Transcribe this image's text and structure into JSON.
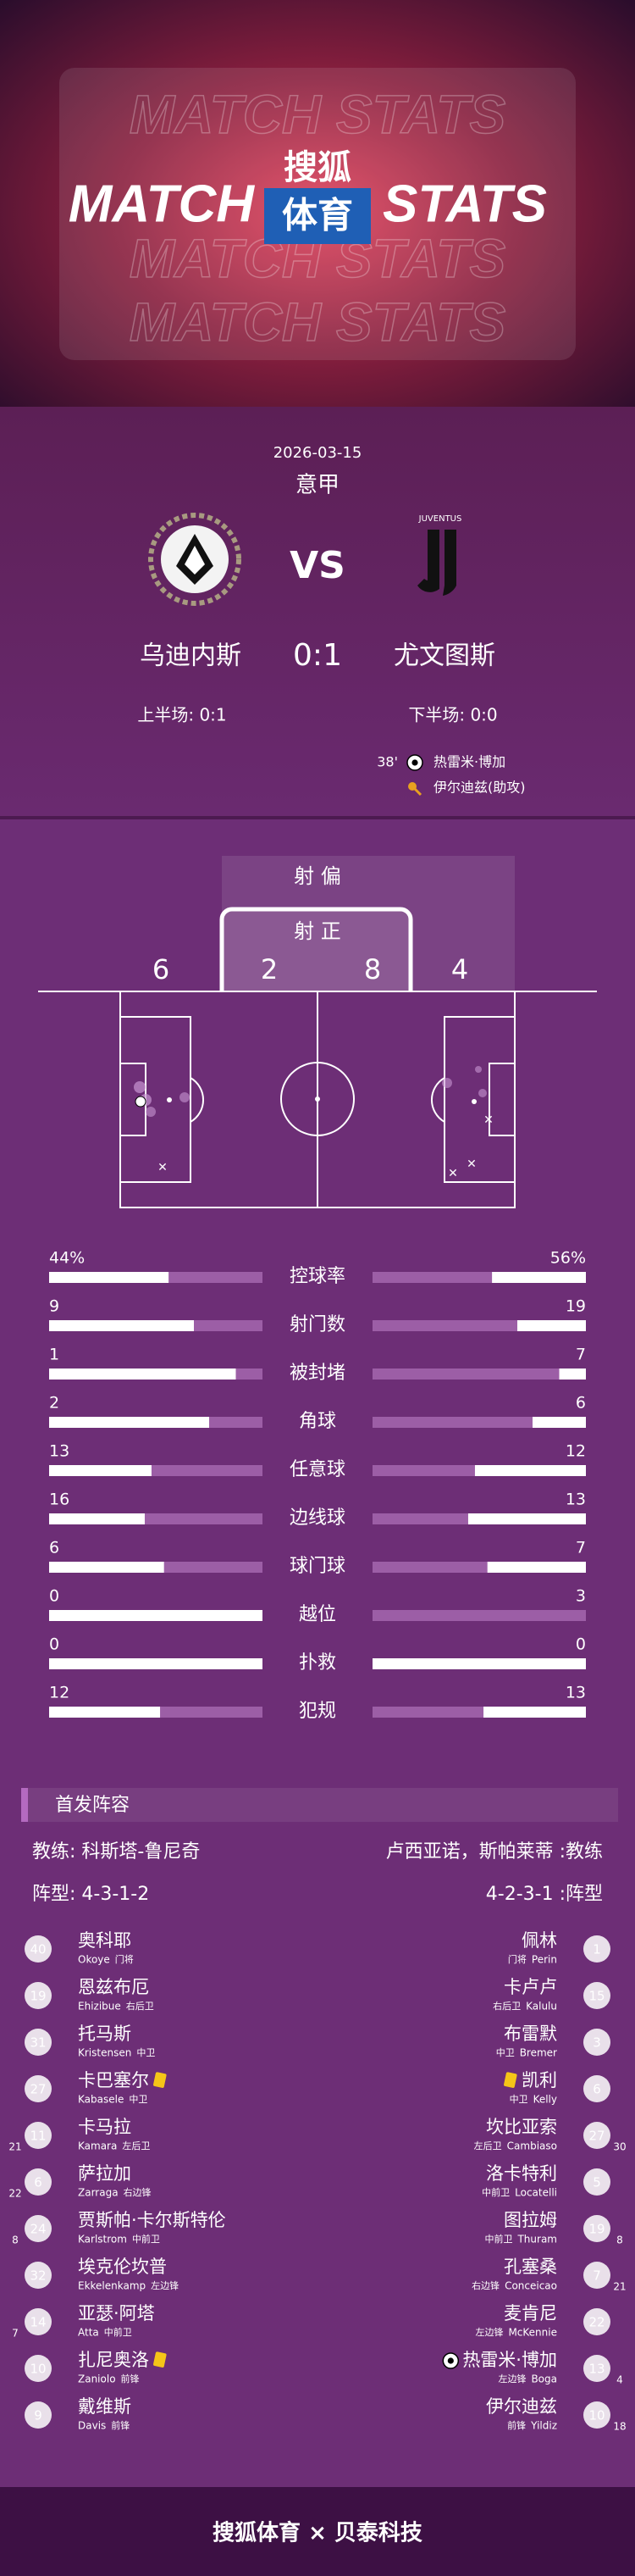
{
  "header": {
    "bg_text": "MATCH STATS",
    "title_left": "MATCH",
    "brand_top": "搜狐",
    "brand_bottom": "体育",
    "title_right": "STATS"
  },
  "match": {
    "date": "2026-03-15",
    "league": "意甲",
    "vs": "VS",
    "away_logo_text": "JUVENTUS",
    "home": "乌迪内斯",
    "score": "0:1",
    "away": "尤文图斯",
    "first_half": "上半场: 0:1",
    "second_half": "下半场: 0:0",
    "events": [
      {
        "minute": "38'",
        "player": "热雷米·博加",
        "icon": "goal"
      },
      {
        "player": "伊尔迪兹(助攻)",
        "icon": "assist"
      }
    ]
  },
  "shots": {
    "off_label": "射 偏",
    "on_label": "射 正",
    "home_off": 6,
    "home_on": 2,
    "away_on": 8,
    "away_off": 4
  },
  "stats": [
    {
      "name": "控球率",
      "home": 44,
      "away": 56,
      "home_label": "44%",
      "away_label": "56%"
    },
    {
      "name": "射门数",
      "home": 9,
      "away": 19
    },
    {
      "name": "被封堵",
      "home": 1,
      "away": 7
    },
    {
      "name": "角球",
      "home": 2,
      "away": 6
    },
    {
      "name": "任意球",
      "home": 13,
      "away": 12
    },
    {
      "name": "边线球",
      "home": 16,
      "away": 13
    },
    {
      "name": "球门球",
      "home": 6,
      "away": 7
    },
    {
      "name": "越位",
      "home": 0,
      "away": 3
    },
    {
      "name": "扑救",
      "home": 0,
      "away": 0
    },
    {
      "name": "犯规",
      "home": 12,
      "away": 13
    }
  ],
  "lineup": {
    "title": "首发阵容",
    "home_coach": "教练: 科斯塔-鲁尼奇",
    "away_coach": "卢西亚诺，斯帕莱蒂 :教练",
    "home_formation": "阵型: 4-3-1-2",
    "away_formation": "4-2-3-1 :阵型",
    "home_players": [
      {
        "number": 40,
        "name": "奥科耶",
        "name_en": "Okoye",
        "position": "门将"
      },
      {
        "number": 19,
        "name": "恩兹布厄",
        "name_en": "Ehizibue",
        "position": "右后卫"
      },
      {
        "number": 31,
        "name": "托马斯",
        "name_en": "Kristensen",
        "position": "中卫"
      },
      {
        "number": 27,
        "name": "卡巴塞尔",
        "name_en": "Kabasele",
        "position": "中卫",
        "card": "yellow"
      },
      {
        "number": 11,
        "name": "卡马拉",
        "name_en": "Kamara",
        "position": "左后卫",
        "sub": 21
      },
      {
        "number": 6,
        "name": "萨拉加",
        "name_en": "Zarraga",
        "position": "右边锋",
        "sub": 22
      },
      {
        "number": 24,
        "name": "贾斯帕·卡尔斯特伦",
        "name_en": "Karlstrom",
        "position": "中前卫",
        "sub": 8
      },
      {
        "number": 32,
        "name": "埃克伦坎普",
        "name_en": "Ekkelenkamp",
        "position": "左边锋"
      },
      {
        "number": 14,
        "name": "亚瑟·阿塔",
        "name_en": "Atta",
        "position": "中前卫",
        "sub": 7
      },
      {
        "number": 10,
        "name": "扎尼奥洛",
        "name_en": "Zaniolo",
        "position": "前锋",
        "card": "yellow"
      },
      {
        "number": 9,
        "name": "戴维斯",
        "name_en": "Davis",
        "position": "前锋"
      }
    ],
    "away_players": [
      {
        "number": 1,
        "name": "佩林",
        "name_en": "Perin",
        "position": "门将"
      },
      {
        "number": 15,
        "name": "卡卢卢",
        "name_en": "Kalulu",
        "position": "右后卫"
      },
      {
        "number": 3,
        "name": "布雷默",
        "name_en": "Bremer",
        "position": "中卫"
      },
      {
        "number": 6,
        "name": "凯利",
        "name_en": "Kelly",
        "position": "中卫",
        "card": "yellow"
      },
      {
        "number": 27,
        "name": "坎比亚索",
        "name_en": "Cambiaso",
        "position": "左后卫",
        "sub": 30
      },
      {
        "number": 5,
        "name": "洛卡特利",
        "name_en": "Locatelli",
        "position": "中前卫"
      },
      {
        "number": 19,
        "name": "图拉姆",
        "name_en": "Thuram",
        "position": "中前卫",
        "sub": 8
      },
      {
        "number": 7,
        "name": "孔塞桑",
        "name_en": "Conceicao",
        "position": "右边锋",
        "sub": 21
      },
      {
        "number": 22,
        "name": "麦肯尼",
        "name_en": "McKennie",
        "position": "左边锋"
      },
      {
        "number": 13,
        "name": "热雷米·博加",
        "name_en": "Boga",
        "position": "左边锋",
        "sub": 4,
        "goal": true
      },
      {
        "number": 10,
        "name": "伊尔迪兹",
        "name_en": "Yildiz",
        "position": "前锋",
        "sub": 18
      }
    ]
  },
  "footer": "搜狐体育 × 贝泰科技"
}
